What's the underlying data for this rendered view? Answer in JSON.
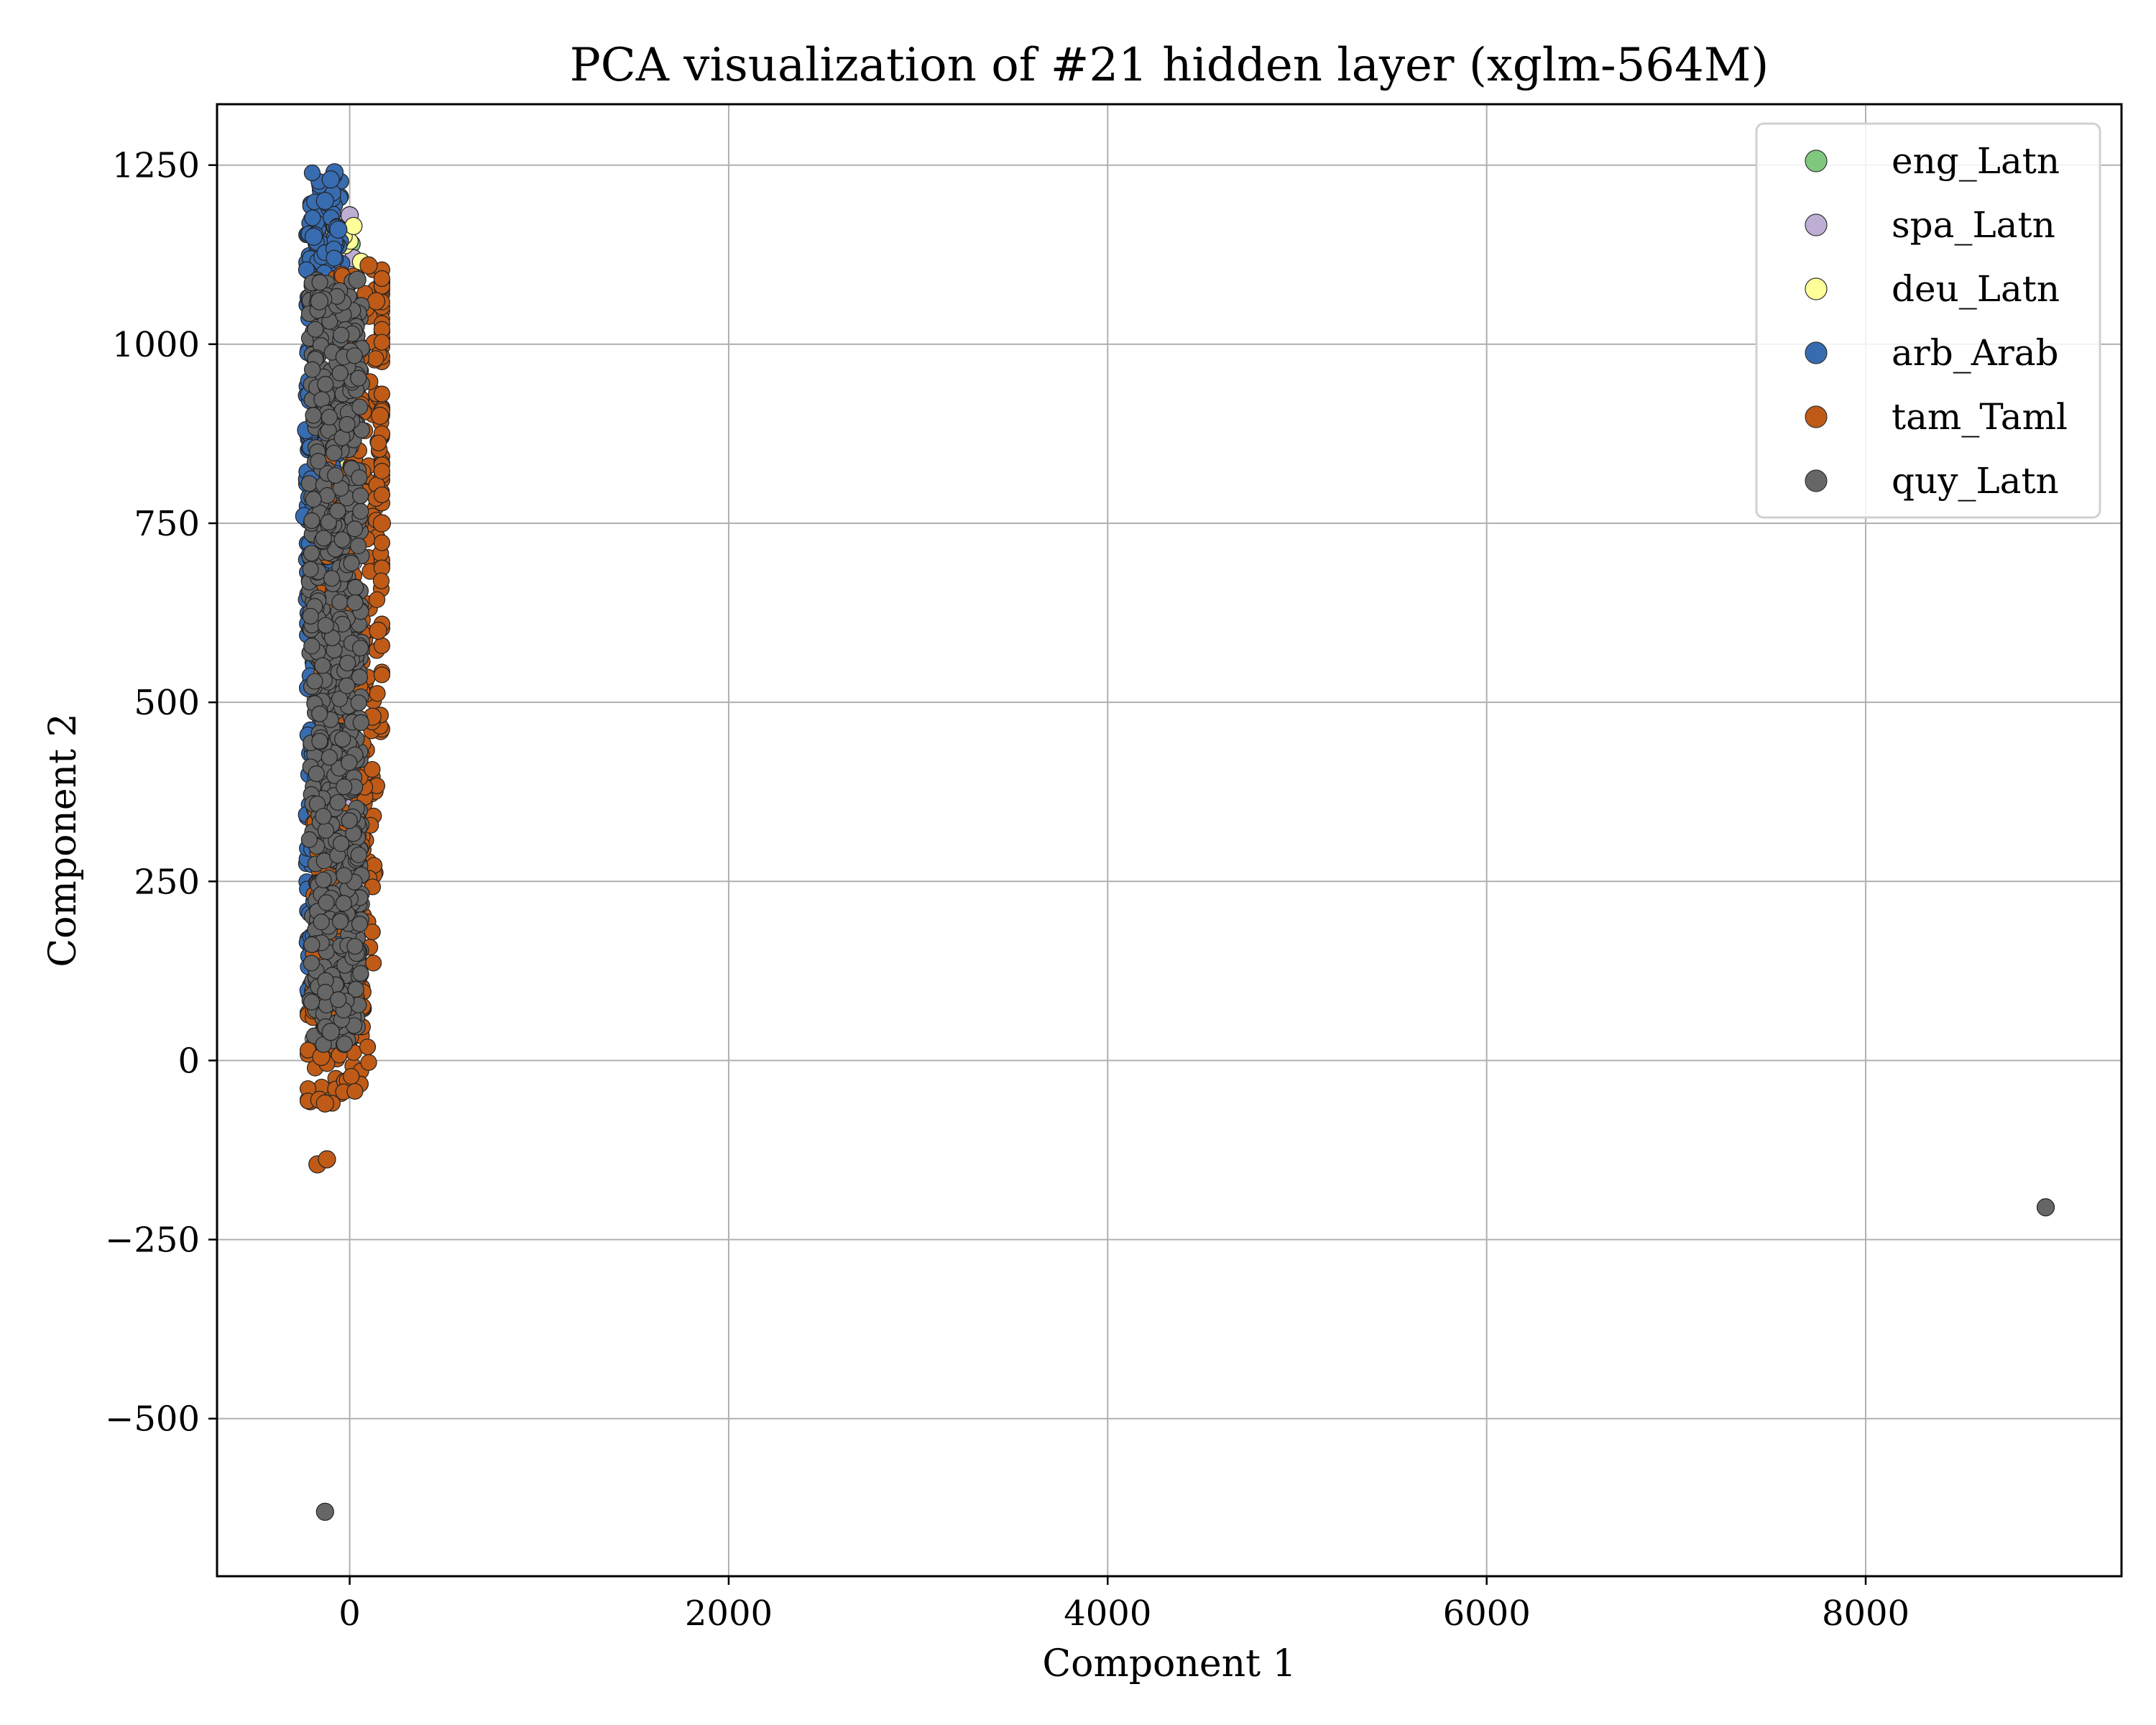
{
  "chart_data": {
    "type": "scatter",
    "title": "PCA visualization of #21 hidden layer (xglm-564M)",
    "xlabel": "Component 1",
    "ylabel": "Component 2",
    "xlim": [
      -700,
      9350
    ],
    "ylim": [
      -720,
      1335
    ],
    "xticks": [
      0,
      2000,
      4000,
      6000,
      8000
    ],
    "yticks": [
      -500,
      -250,
      0,
      250,
      500,
      750,
      1000,
      1250
    ],
    "xtick_labels": [
      "0",
      "2000",
      "4000",
      "6000",
      "8000"
    ],
    "ytick_labels": [
      "−500",
      "−250",
      "0",
      "250",
      "500",
      "750",
      "1000",
      "1250"
    ],
    "grid": true,
    "legend_position": "top-right",
    "series": [
      {
        "name": "eng_Latn",
        "color": "#7fc97f",
        "cluster": {
          "x_range": [
            -200,
            40
          ],
          "y_range": [
            20,
            1150
          ]
        },
        "points": [
          [
            -90,
            5
          ],
          [
            -120,
            60
          ],
          [
            10,
            1140
          ],
          [
            -60,
            600
          ]
        ]
      },
      {
        "name": "spa_Latn",
        "color": "#beaed4",
        "cluster": {
          "x_range": [
            -200,
            40
          ],
          "y_range": [
            20,
            1180
          ]
        },
        "points": [
          [
            0,
            1180
          ],
          [
            -150,
            650
          ],
          [
            -190,
            30
          ],
          [
            20,
            1120
          ]
        ]
      },
      {
        "name": "deu_Latn",
        "color": "#ffff99",
        "cluster": {
          "x_range": [
            -180,
            60
          ],
          "y_range": [
            30,
            1170
          ]
        },
        "points": [
          [
            20,
            1165
          ],
          [
            60,
            1115
          ],
          [
            -150,
            20
          ]
        ]
      },
      {
        "name": "arb_Arab",
        "color": "#386cb0",
        "cluster": {
          "x_range": [
            -240,
            -30
          ],
          "y_range": [
            80,
            1240
          ]
        },
        "points": [
          [
            -80,
            1240
          ],
          [
            -100,
            1230
          ],
          [
            -190,
            1150
          ],
          [
            -240,
            760
          ],
          [
            -220,
            520
          ],
          [
            -210,
            1060
          ],
          [
            -230,
            880
          ],
          [
            -200,
            440
          ],
          [
            -60,
            1160
          ],
          [
            -130,
            1200
          ]
        ]
      },
      {
        "name": "tam_Taml",
        "color": "#bf5b17",
        "cluster": {
          "x_range": [
            -220,
            170
          ],
          "y_range": [
            -60,
            1110
          ]
        },
        "points": [
          [
            -170,
            -145
          ],
          [
            -120,
            -138
          ],
          [
            -160,
            -55
          ],
          [
            -130,
            -60
          ],
          [
            100,
            1110
          ],
          [
            140,
            1060
          ],
          [
            160,
            900
          ],
          [
            170,
            750
          ],
          [
            150,
            600
          ],
          [
            120,
            480
          ],
          [
            60,
            300
          ],
          [
            -30,
            150
          ],
          [
            -60,
            60
          ],
          [
            -150,
            5
          ]
        ]
      },
      {
        "name": "quy_Latn",
        "color": "#666666",
        "cluster": {
          "x_range": [
            -230,
            80
          ],
          "y_range": [
            20,
            1090
          ]
        },
        "points": [
          [
            8950,
            -205
          ],
          [
            -130,
            -630
          ],
          [
            40,
            1090
          ],
          [
            -160,
            1060
          ],
          [
            -100,
            40
          ]
        ]
      }
    ]
  }
}
